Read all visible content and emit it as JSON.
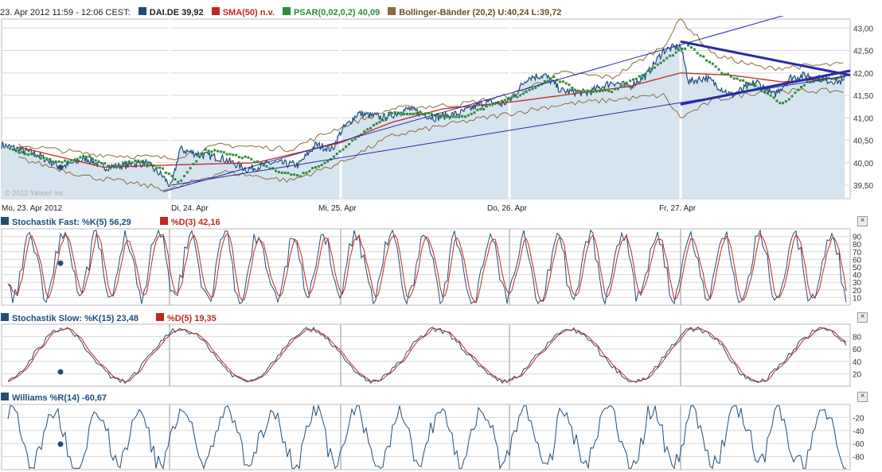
{
  "header": {
    "time": "23. Apr 2012 11:59 - 12:06 CEST:",
    "legend": [
      {
        "label": "DAI.DE 39,92",
        "color": "#1f4e79"
      },
      {
        "label": "SMA(50) n.v.",
        "color": "#c0281e"
      },
      {
        "label": "PSAR(0,02,0,2) 40,09",
        "color": "#2e8b3a"
      },
      {
        "label": "Bollinger-Bänder (20,2) U:40,24 L:39,72",
        "color": "#8b6b3a"
      }
    ]
  },
  "watermark": "© 2012 Yahoo! Inc.",
  "close_symbol": "×",
  "colors": {
    "price": "#1f4e79",
    "sma": "#c0281e",
    "psar": "#2e8b3a",
    "boll": "#8b6b3a",
    "fill": "#d6e4f0",
    "trend": "#2a2aa8",
    "grid": "#d8d8d8"
  },
  "chart_data": [
    {
      "type": "line",
      "title": "DAI.DE",
      "x_labels": [
        "Mo, 23. Apr 2012",
        "Di, 24. Apr",
        "Mi, 25. Apr",
        "Do, 26. Apr",
        "Fr, 27. Apr"
      ],
      "ylim": [
        39.2,
        43.2
      ],
      "y_ticks": [
        "43,00",
        "42,50",
        "42,00",
        "41,50",
        "41,00",
        "40,50",
        "40,00",
        "39,50"
      ],
      "y_tick_values": [
        43.0,
        42.5,
        42.0,
        41.5,
        41.0,
        40.5,
        40.0,
        39.5
      ],
      "price_points": [
        [
          0,
          40.4
        ],
        [
          0.2,
          40.2
        ],
        [
          0.35,
          39.9
        ],
        [
          0.5,
          40.1
        ],
        [
          0.6,
          39.9
        ],
        [
          0.75,
          39.95
        ],
        [
          0.85,
          40.0
        ],
        [
          0.95,
          39.7
        ],
        [
          1.0,
          39.45
        ],
        [
          1.05,
          40.3
        ],
        [
          1.15,
          40.2
        ],
        [
          1.3,
          40.1
        ],
        [
          1.45,
          39.85
        ],
        [
          1.6,
          40.0
        ],
        [
          1.75,
          39.95
        ],
        [
          1.85,
          40.4
        ],
        [
          1.95,
          40.3
        ],
        [
          2.0,
          40.7
        ],
        [
          2.1,
          41.1
        ],
        [
          2.25,
          41.0
        ],
        [
          2.4,
          41.2
        ],
        [
          2.55,
          41.0
        ],
        [
          2.7,
          41.1
        ],
        [
          2.85,
          41.35
        ],
        [
          2.95,
          41.3
        ],
        [
          3.0,
          41.4
        ],
        [
          3.1,
          41.9
        ],
        [
          3.2,
          41.95
        ],
        [
          3.3,
          41.6
        ],
        [
          3.45,
          41.55
        ],
        [
          3.6,
          41.8
        ],
        [
          3.7,
          41.7
        ],
        [
          3.8,
          41.95
        ],
        [
          3.9,
          42.5
        ],
        [
          4.0,
          42.6
        ],
        [
          4.05,
          41.8
        ],
        [
          4.15,
          41.9
        ],
        [
          4.3,
          41.5
        ],
        [
          4.45,
          41.8
        ],
        [
          4.55,
          41.5
        ],
        [
          4.65,
          41.9
        ],
        [
          4.75,
          41.95
        ],
        [
          4.85,
          41.85
        ],
        [
          4.97,
          41.8
        ]
      ],
      "sma_points": [
        [
          0.1,
          40.35
        ],
        [
          0.6,
          39.9
        ],
        [
          1.0,
          39.95
        ],
        [
          1.5,
          40.0
        ],
        [
          2.0,
          40.45
        ],
        [
          2.3,
          40.9
        ],
        [
          2.6,
          41.2
        ],
        [
          3.0,
          41.35
        ],
        [
          3.3,
          41.5
        ],
        [
          3.7,
          41.7
        ],
        [
          4.0,
          42.0
        ],
        [
          4.3,
          41.95
        ],
        [
          4.6,
          41.8
        ],
        [
          4.97,
          41.9
        ]
      ],
      "boll_upper_points": [
        [
          0.1,
          40.4
        ],
        [
          0.5,
          40.2
        ],
        [
          1.0,
          40.1
        ],
        [
          1.3,
          40.4
        ],
        [
          1.7,
          40.3
        ],
        [
          2.0,
          40.8
        ],
        [
          2.3,
          41.2
        ],
        [
          2.7,
          41.3
        ],
        [
          3.0,
          41.5
        ],
        [
          3.3,
          42.0
        ],
        [
          3.6,
          41.9
        ],
        [
          3.9,
          42.6
        ],
        [
          4.0,
          43.2
        ],
        [
          4.2,
          42.4
        ],
        [
          4.5,
          42.1
        ],
        [
          4.97,
          42.2
        ]
      ],
      "boll_lower_points": [
        [
          0.1,
          40.1
        ],
        [
          0.5,
          39.7
        ],
        [
          1.0,
          39.4
        ],
        [
          1.3,
          39.8
        ],
        [
          1.7,
          39.6
        ],
        [
          2.0,
          40.0
        ],
        [
          2.3,
          40.6
        ],
        [
          2.7,
          40.9
        ],
        [
          3.0,
          41.1
        ],
        [
          3.3,
          41.3
        ],
        [
          3.6,
          41.4
        ],
        [
          3.9,
          41.5
        ],
        [
          4.0,
          41.0
        ],
        [
          4.2,
          41.4
        ],
        [
          4.5,
          41.6
        ],
        [
          4.97,
          41.6
        ]
      ],
      "psar_points": [
        [
          0.05,
          40.3
        ],
        [
          0.2,
          40.15
        ],
        [
          0.35,
          40.0
        ],
        [
          0.5,
          40.15
        ],
        [
          0.65,
          39.9
        ],
        [
          0.8,
          40.05
        ],
        [
          0.95,
          39.85
        ],
        [
          1.05,
          39.55
        ],
        [
          1.2,
          40.3
        ],
        [
          1.45,
          40.1
        ],
        [
          1.6,
          39.85
        ],
        [
          1.75,
          39.7
        ],
        [
          1.95,
          40.1
        ],
        [
          2.1,
          40.6
        ],
        [
          2.3,
          41.1
        ],
        [
          2.5,
          41.1
        ],
        [
          2.7,
          41.0
        ],
        [
          2.9,
          41.3
        ],
        [
          3.05,
          41.5
        ],
        [
          3.25,
          41.9
        ],
        [
          3.4,
          41.6
        ],
        [
          3.6,
          41.6
        ],
        [
          3.8,
          42.0
        ],
        [
          3.95,
          42.4
        ],
        [
          4.05,
          42.6
        ],
        [
          4.25,
          42.0
        ],
        [
          4.45,
          41.7
        ],
        [
          4.6,
          41.3
        ],
        [
          4.75,
          41.8
        ],
        [
          4.95,
          41.9
        ]
      ],
      "trend_lines": [
        {
          "from": [
            0.95,
            39.35
          ],
          "to": [
            5.0,
            43.7
          ]
        },
        {
          "from": [
            1.0,
            39.5
          ],
          "to": [
            5.0,
            41.95
          ]
        },
        {
          "from": [
            4.0,
            42.7
          ],
          "to": [
            5.0,
            41.95
          ]
        },
        {
          "from": [
            4.0,
            41.3
          ],
          "to": [
            5.0,
            42.05
          ]
        }
      ]
    },
    {
      "type": "line",
      "title": "Stochastik Fast",
      "series": [
        {
          "name": "Stochastik Fast: %K(5) 56,29",
          "color": "#1f4e79"
        },
        {
          "name": "%D(3) 42,16",
          "color": "#c0281e"
        }
      ],
      "ylim": [
        0,
        100
      ],
      "y_ticks": [
        90,
        80,
        70,
        60,
        50,
        40,
        30,
        20,
        10
      ]
    },
    {
      "type": "line",
      "title": "Stochastik Slow",
      "series": [
        {
          "name": "Stochastik Slow: %K(15) 23,48",
          "color": "#1f4e79"
        },
        {
          "name": "%D(5) 19,35",
          "color": "#c0281e"
        }
      ],
      "ylim": [
        0,
        100
      ],
      "y_ticks": [
        80,
        60,
        40,
        20
      ]
    },
    {
      "type": "line",
      "title": "Williams",
      "series": [
        {
          "name": "Williams %R(14) -60,67",
          "color": "#1f4e79"
        }
      ],
      "ylim": [
        -100,
        0
      ],
      "y_ticks": [
        -20,
        -40,
        -60,
        -80
      ]
    }
  ]
}
